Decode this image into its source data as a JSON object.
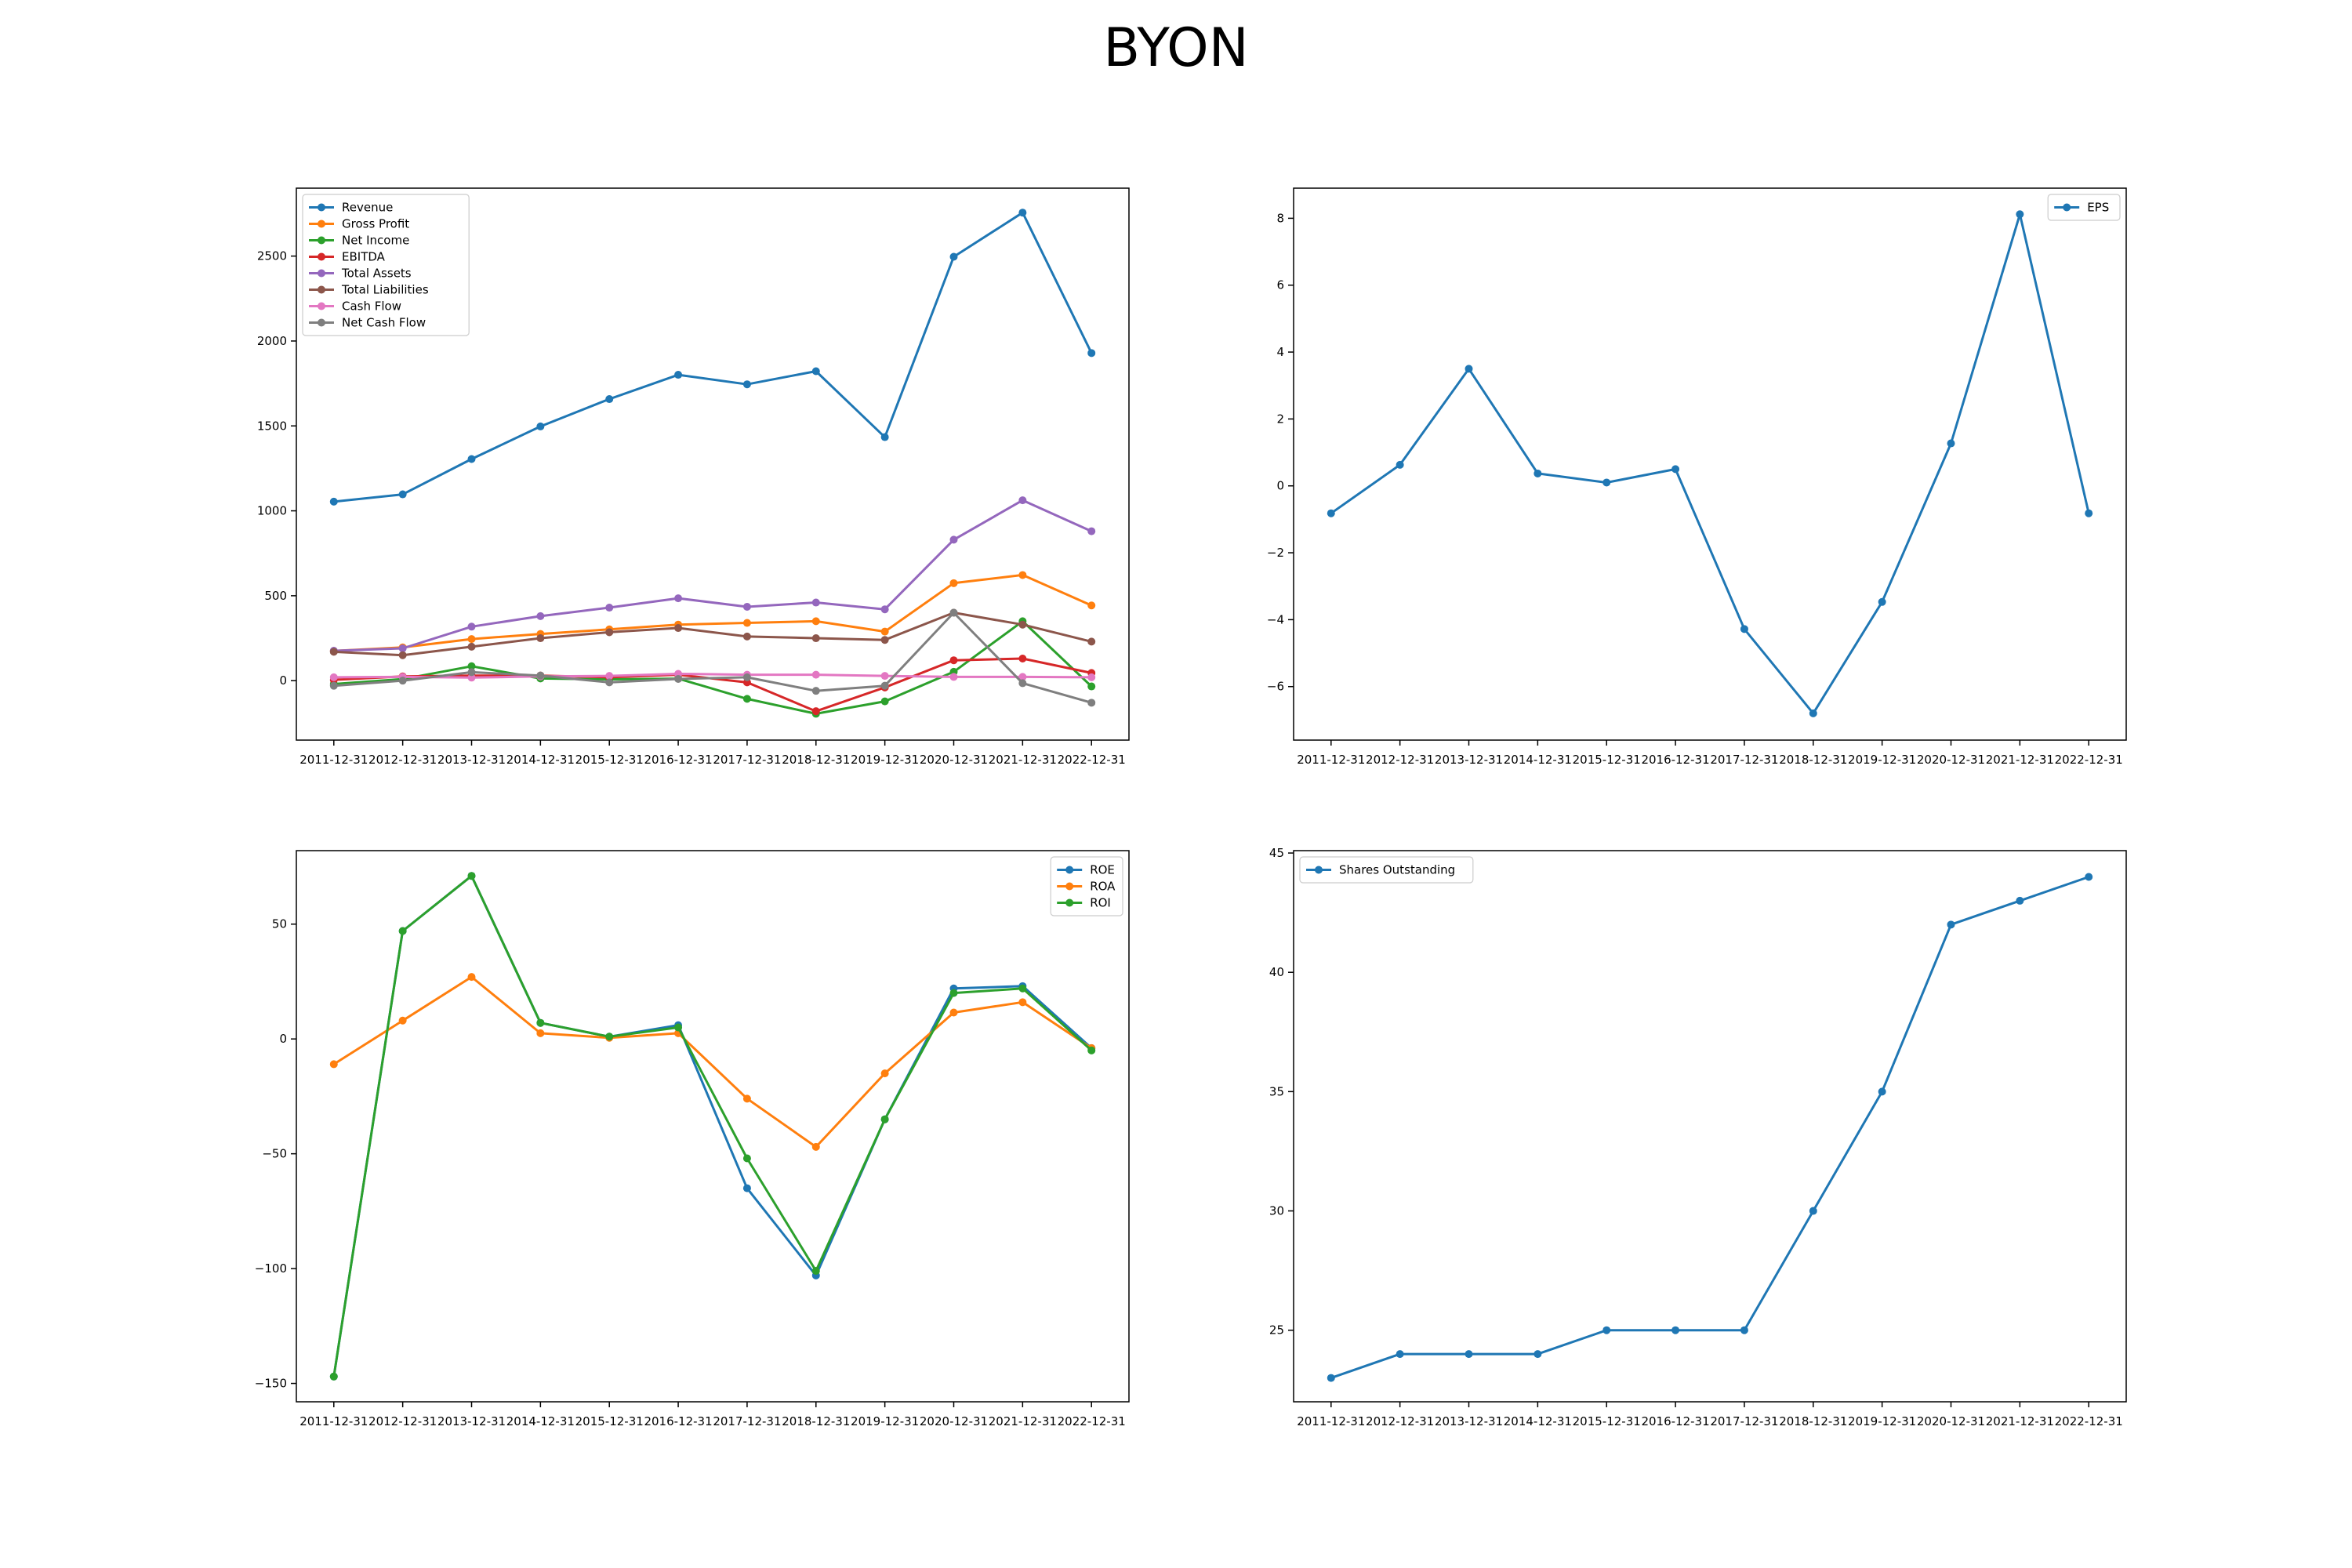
{
  "title": "BYON",
  "chart_data": [
    {
      "type": "line",
      "x": [
        "2011-12-31",
        "2012-12-31",
        "2013-12-31",
        "2014-12-31",
        "2015-12-31",
        "2016-12-31",
        "2017-12-31",
        "2018-12-31",
        "2019-12-31",
        "2020-12-31",
        "2021-12-31",
        "2022-12-31"
      ],
      "ylim": [
        -350,
        2900
      ],
      "yticks": [
        0,
        500,
        1000,
        1500,
        2000,
        2500
      ],
      "legend": "upper left",
      "series": [
        {
          "name": "Revenue",
          "color": "#1f77b4",
          "values": [
            1054,
            1097,
            1305,
            1497,
            1658,
            1801,
            1745,
            1822,
            1434,
            2496,
            2756,
            1929
          ]
        },
        {
          "name": "Gross Profit",
          "color": "#ff7f0e",
          "values": [
            175,
            196,
            245,
            275,
            302,
            330,
            340,
            350,
            289,
            574,
            622,
            443
          ]
        },
        {
          "name": "Net Income",
          "color": "#2ca02c",
          "values": [
            -20,
            9,
            85,
            13,
            8,
            12,
            -107,
            -195,
            -122,
            52,
            350,
            -34
          ]
        },
        {
          "name": "EBITDA",
          "color": "#d62728",
          "values": [
            5,
            25,
            30,
            30,
            20,
            35,
            -10,
            -180,
            -40,
            120,
            130,
            45
          ]
        },
        {
          "name": "Total Assets",
          "color": "#9467bd",
          "values": [
            176,
            190,
            318,
            380,
            430,
            485,
            435,
            460,
            420,
            830,
            1062,
            880
          ]
        },
        {
          "name": "Total Liabilities",
          "color": "#8c564b",
          "values": [
            170,
            150,
            200,
            250,
            285,
            310,
            260,
            250,
            240,
            400,
            330,
            230
          ]
        },
        {
          "name": "Cash Flow",
          "color": "#e377c2",
          "values": [
            20,
            22,
            18,
            25,
            28,
            40,
            35,
            35,
            28,
            22,
            22,
            20
          ]
        },
        {
          "name": "Net Cash Flow",
          "color": "#7f7f7f",
          "values": [
            -30,
            0,
            50,
            30,
            -10,
            10,
            20,
            -60,
            -30,
            400,
            -15,
            -130
          ]
        }
      ]
    },
    {
      "type": "line",
      "x": [
        "2011-12-31",
        "2012-12-31",
        "2013-12-31",
        "2014-12-31",
        "2015-12-31",
        "2016-12-31",
        "2017-12-31",
        "2018-12-31",
        "2019-12-31",
        "2020-12-31",
        "2021-12-31",
        "2022-12-31"
      ],
      "ylim": [
        -7.6,
        8.9
      ],
      "yticks": [
        -6,
        -4,
        -2,
        0,
        2,
        4,
        6,
        8
      ],
      "legend": "upper right",
      "series": [
        {
          "name": "EPS",
          "color": "#1f77b4",
          "values": [
            -0.82,
            0.63,
            3.5,
            0.37,
            0.1,
            0.5,
            -4.28,
            -6.8,
            -3.47,
            1.27,
            8.12,
            -0.82
          ]
        }
      ]
    },
    {
      "type": "line",
      "x": [
        "2011-12-31",
        "2012-12-31",
        "2013-12-31",
        "2014-12-31",
        "2015-12-31",
        "2016-12-31",
        "2017-12-31",
        "2018-12-31",
        "2019-12-31",
        "2020-12-31",
        "2021-12-31",
        "2022-12-31"
      ],
      "ylim": [
        -158,
        82
      ],
      "yticks": [
        -150,
        -100,
        -50,
        0,
        50
      ],
      "legend": "upper right",
      "series": [
        {
          "name": "ROE",
          "color": "#1f77b4",
          "values": [
            -147,
            47,
            71,
            7,
            1,
            6,
            -65,
            -103,
            -35,
            22,
            23,
            -4
          ]
        },
        {
          "name": "ROA",
          "color": "#ff7f0e",
          "values": [
            -11,
            8,
            27,
            2.5,
            0.5,
            2.5,
            -26,
            -47,
            -15,
            11.5,
            16,
            -4
          ]
        },
        {
          "name": "ROI",
          "color": "#2ca02c",
          "values": [
            -147,
            47,
            71,
            7,
            1,
            5,
            -52,
            -101,
            -35,
            20,
            22,
            -5
          ]
        }
      ]
    },
    {
      "type": "line",
      "x": [
        "2011-12-31",
        "2012-12-31",
        "2013-12-31",
        "2014-12-31",
        "2015-12-31",
        "2016-12-31",
        "2017-12-31",
        "2018-12-31",
        "2019-12-31",
        "2020-12-31",
        "2021-12-31",
        "2022-12-31"
      ],
      "ylim": [
        22,
        45.1
      ],
      "yticks": [
        25,
        30,
        35,
        40,
        45
      ],
      "legend": "upper left",
      "series": [
        {
          "name": "Shares Outstanding",
          "color": "#1f77b4",
          "values": [
            23,
            24,
            24,
            24,
            25,
            25,
            25,
            30,
            35,
            42,
            43,
            44
          ]
        }
      ]
    }
  ]
}
